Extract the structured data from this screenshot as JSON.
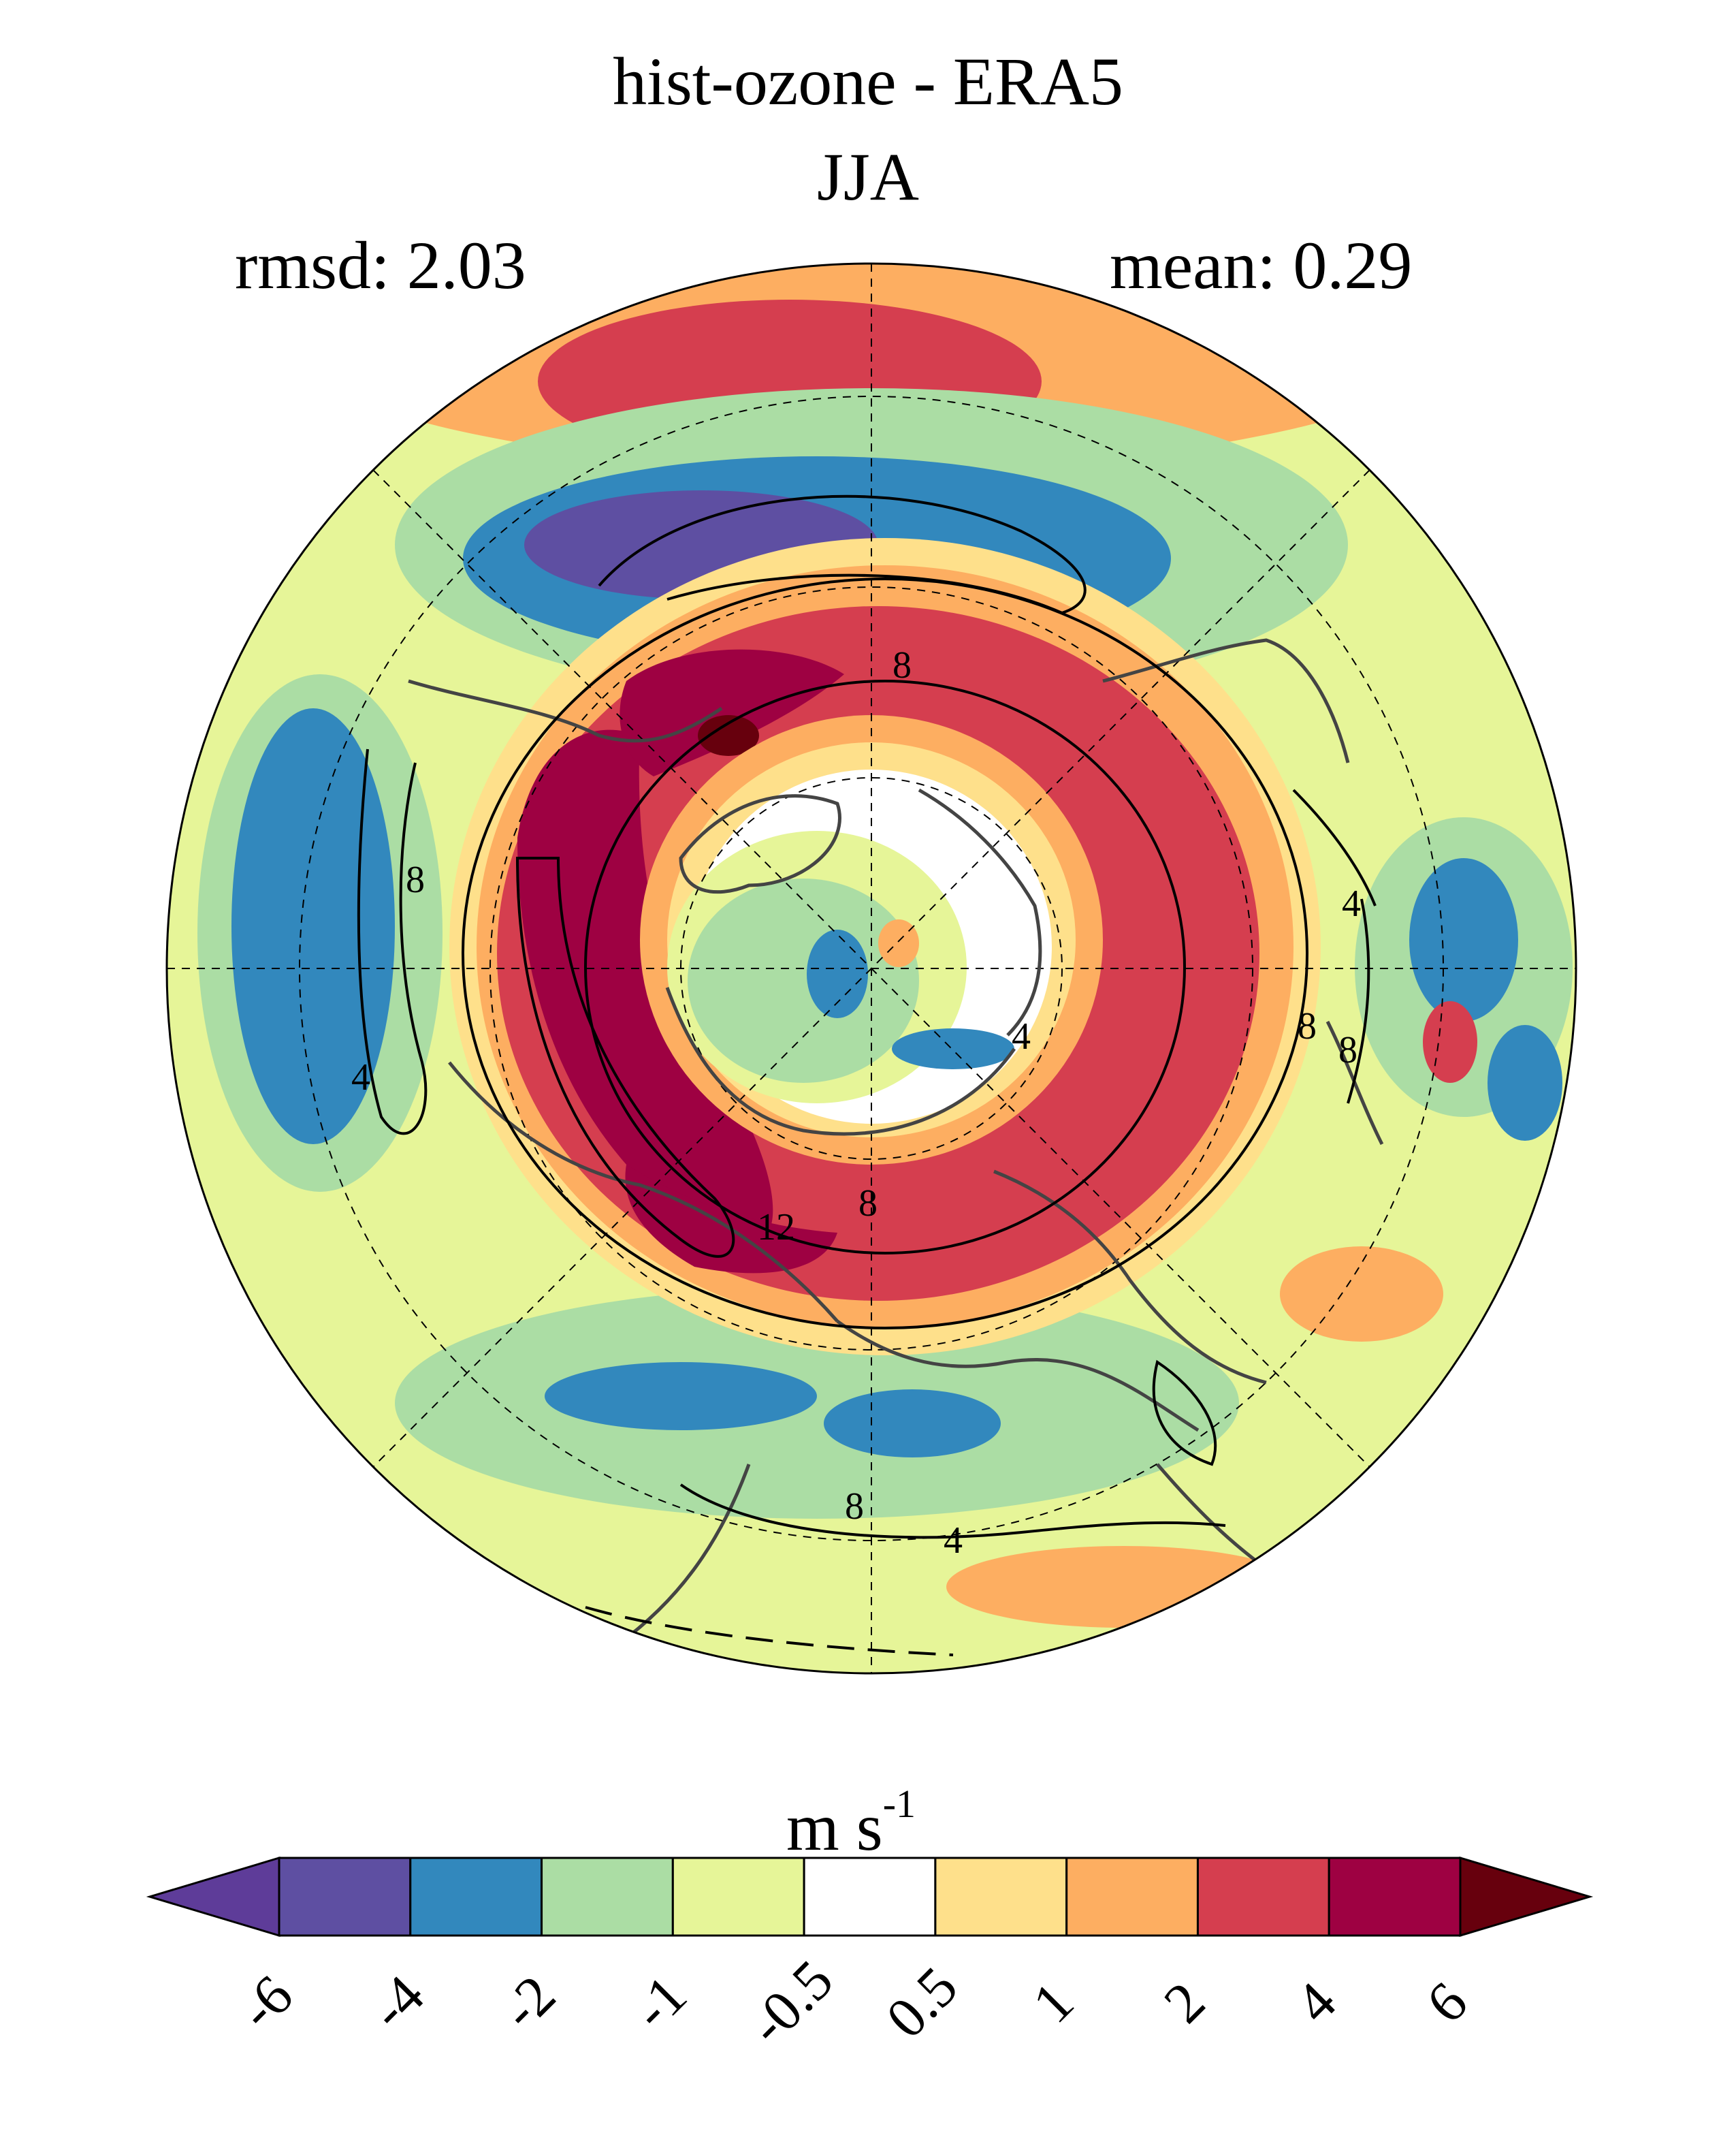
{
  "title": "hist-ozone - ERA5",
  "season": "JJA",
  "rmsd_label": "rmsd: 2.03",
  "mean_label": "mean: 0.29",
  "units": {
    "base": "m s",
    "exp": "-1"
  },
  "colorbar": {
    "ticks": [
      "-6",
      "-4",
      "-2",
      "-1",
      "-0.5",
      "0.5",
      "1",
      "2",
      "4",
      "6"
    ],
    "colors": [
      "#5e3c99",
      "#5e4fa2",
      "#3288bd",
      "#abdda4",
      "#e6f598",
      "#ffffff",
      "#fee08b",
      "#fdae61",
      "#d53e4f",
      "#9e0142",
      "#67000d"
    ]
  },
  "contour_labels": [
    "8",
    "8",
    "4",
    "4",
    "4",
    "8",
    "8",
    "12",
    "8",
    "4",
    "8"
  ],
  "colors": {
    "land_outline": "#444444",
    "contour": "#000000"
  }
}
